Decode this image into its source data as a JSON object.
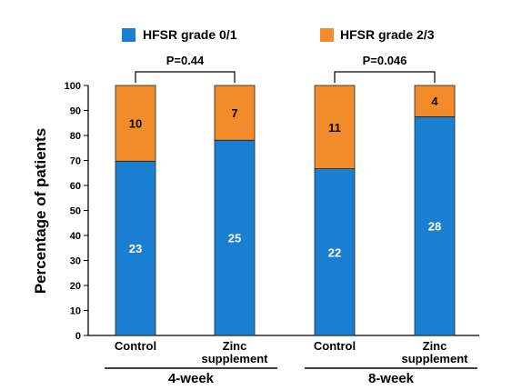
{
  "chart_data": {
    "type": "bar",
    "stacked": true,
    "ylabel": "Percentage of patients",
    "ylim": [
      0,
      100
    ],
    "yticks": [
      0,
      10,
      20,
      30,
      40,
      50,
      60,
      70,
      80,
      90,
      100
    ],
    "legend": [
      {
        "name": "HFSR grade 0/1",
        "color": "#1a7fd1"
      },
      {
        "name": "HFSR grade 2/3",
        "color": "#f28c2a"
      }
    ],
    "bars": [
      {
        "category": [
          "Control"
        ],
        "group": "4-week",
        "lower_pct": 69.7,
        "lower_count": "23",
        "upper_count": "10"
      },
      {
        "category": [
          "Zinc",
          "supplement"
        ],
        "group": "4-week",
        "lower_pct": 78.1,
        "lower_count": "25",
        "upper_count": "7"
      },
      {
        "category": [
          "Control"
        ],
        "group": "8-week",
        "lower_pct": 66.7,
        "lower_count": "22",
        "upper_count": "11"
      },
      {
        "category": [
          "Zinc",
          "supplement"
        ],
        "group": "8-week",
        "lower_pct": 87.5,
        "lower_count": "28",
        "upper_count": "4"
      }
    ],
    "groups": [
      "4-week",
      "8-week"
    ],
    "comparisons": [
      {
        "text": "P=0.44",
        "group": "4-week"
      },
      {
        "text": "P=0.046",
        "group": "8-week"
      }
    ]
  }
}
